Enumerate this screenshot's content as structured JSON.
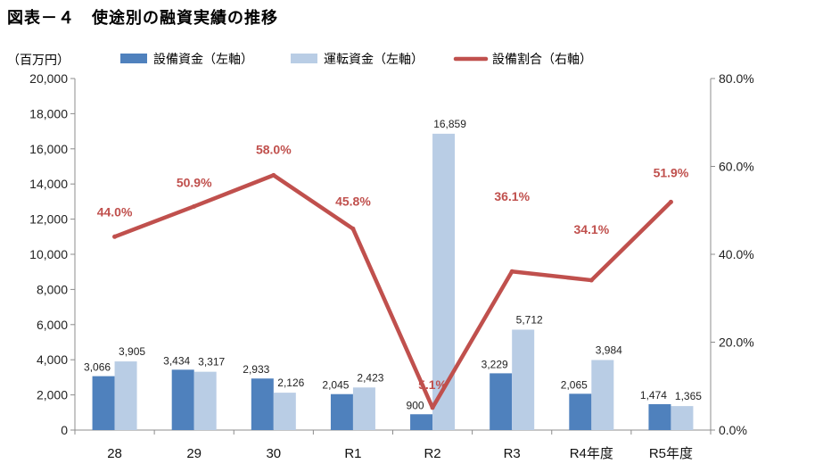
{
  "title": "図表－４　使途別の融資実績の推移",
  "colors": {
    "equipment": "#4f81bd",
    "operating": "#b9cde5",
    "ratio": "#c0504d",
    "axis": "#8c8c8c"
  },
  "chart_data": {
    "type": "bar",
    "categories": [
      "28",
      "29",
      "30",
      "R1",
      "R2",
      "R3",
      "R4年度",
      "R5年度"
    ],
    "series": [
      {
        "name": "設備資金（左軸）",
        "type": "bar",
        "axis": "left",
        "values": [
          3066,
          3434,
          2933,
          2045,
          900,
          3229,
          2065,
          1474
        ],
        "labels": [
          "3,066",
          "3,434",
          "2,933",
          "2,045",
          "900",
          "3,229",
          "2,065",
          "1,474"
        ]
      },
      {
        "name": "運転資金（左軸）",
        "type": "bar",
        "axis": "left",
        "values": [
          3905,
          3317,
          2126,
          2423,
          16859,
          5712,
          3984,
          1365
        ],
        "labels": [
          "3,905",
          "3,317",
          "2,126",
          "2,423",
          "16,859",
          "5,712",
          "3,984",
          "1,365"
        ]
      },
      {
        "name": "設備割合（右軸）",
        "type": "line",
        "axis": "right",
        "values": [
          44.0,
          50.9,
          58.0,
          45.8,
          5.1,
          36.1,
          34.1,
          51.9
        ],
        "labels": [
          "44.0%",
          "50.9%",
          "58.0%",
          "45.8%",
          "5.1%",
          "36.1%",
          "34.1%",
          "51.9%"
        ]
      }
    ],
    "ylabel": "（百万円）",
    "ylim": [
      0,
      20000
    ],
    "yticks": [
      "0",
      "2,000",
      "4,000",
      "6,000",
      "8,000",
      "10,000",
      "12,000",
      "14,000",
      "16,000",
      "18,000",
      "20,000"
    ],
    "y2lim": [
      0,
      80
    ],
    "y2ticks": [
      "0.0%",
      "20.0%",
      "40.0%",
      "60.0%",
      "80.0%"
    ],
    "grid": false,
    "legend": "top"
  }
}
